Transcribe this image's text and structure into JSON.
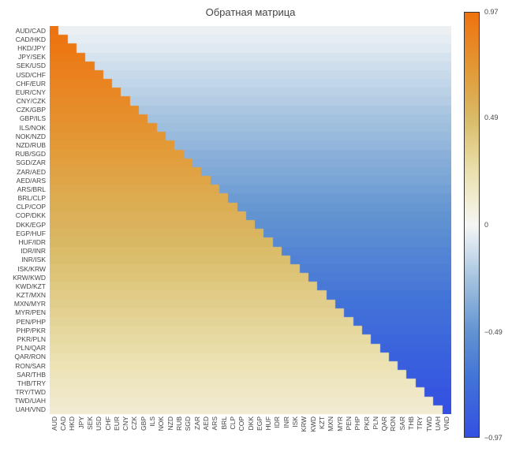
{
  "chart_data": {
    "type": "heatmap",
    "title": "Обратная матрица",
    "x_labels": [
      "AUD",
      "CAD",
      "HKD",
      "JPY",
      "SEK",
      "USD",
      "CHF",
      "EUR",
      "CNY",
      "CZK",
      "GBP",
      "ILS",
      "NOK",
      "NZD",
      "RUB",
      "SGD",
      "ZAR",
      "AED",
      "ARS",
      "BRL",
      "CLP",
      "COP",
      "DKK",
      "EGP",
      "HUF",
      "IDR",
      "INR",
      "ISK",
      "KRW",
      "KWD",
      "KZT",
      "MXN",
      "MYR",
      "PEN",
      "PHP",
      "PKR",
      "PLN",
      "QAR",
      "RON",
      "SAR",
      "THB",
      "TRY",
      "TWD",
      "UAH",
      "VND"
    ],
    "zmin": -0.97,
    "zmax": 0.97,
    "pattern_note": "Row i: columns 0..i take value below_diagonal, columns i+1..44 take value above_diagonal (triangular staircase from top-left to bottom-right).",
    "rows": [
      {
        "pair": "AUD/CAD",
        "below_diagonal": 0.97,
        "above_diagonal": -0.03
      },
      {
        "pair": "CAD/HKD",
        "below_diagonal": 0.95,
        "above_diagonal": -0.05
      },
      {
        "pair": "HKD/JPY",
        "below_diagonal": 0.93,
        "above_diagonal": -0.07
      },
      {
        "pair": "JPY/SEK",
        "below_diagonal": 0.91,
        "above_diagonal": -0.1
      },
      {
        "pair": "SEK/USD",
        "below_diagonal": 0.89,
        "above_diagonal": -0.12
      },
      {
        "pair": "USD/CHF",
        "below_diagonal": 0.87,
        "above_diagonal": -0.14
      },
      {
        "pair": "CHF/EUR",
        "below_diagonal": 0.85,
        "above_diagonal": -0.16
      },
      {
        "pair": "EUR/CNY",
        "below_diagonal": 0.83,
        "above_diagonal": -0.18
      },
      {
        "pair": "CNY/CZK",
        "below_diagonal": 0.81,
        "above_diagonal": -0.2
      },
      {
        "pair": "CZK/GBP",
        "below_diagonal": 0.79,
        "above_diagonal": -0.23
      },
      {
        "pair": "GBP/ILS",
        "below_diagonal": 0.77,
        "above_diagonal": -0.25
      },
      {
        "pair": "ILS/NOK",
        "below_diagonal": 0.75,
        "above_diagonal": -0.27
      },
      {
        "pair": "NOK/NZD",
        "below_diagonal": 0.73,
        "above_diagonal": -0.29
      },
      {
        "pair": "NZD/RUB",
        "below_diagonal": 0.71,
        "above_diagonal": -0.31
      },
      {
        "pair": "RUB/SGD",
        "below_diagonal": 0.69,
        "above_diagonal": -0.34
      },
      {
        "pair": "SGD/ZAR",
        "below_diagonal": 0.67,
        "above_diagonal": -0.36
      },
      {
        "pair": "ZAR/AED",
        "below_diagonal": 0.65,
        "above_diagonal": -0.38
      },
      {
        "pair": "AED/ARS",
        "below_diagonal": 0.63,
        "above_diagonal": -0.4
      },
      {
        "pair": "ARS/BRL",
        "below_diagonal": 0.61,
        "above_diagonal": -0.42
      },
      {
        "pair": "BRL/CLP",
        "below_diagonal": 0.59,
        "above_diagonal": -0.45
      },
      {
        "pair": "CLP/COP",
        "below_diagonal": 0.57,
        "above_diagonal": -0.47
      },
      {
        "pair": "COP/DKK",
        "below_diagonal": 0.55,
        "above_diagonal": -0.49
      },
      {
        "pair": "DKK/EGP",
        "below_diagonal": 0.54,
        "above_diagonal": -0.51
      },
      {
        "pair": "EGP/HUF",
        "below_diagonal": 0.52,
        "above_diagonal": -0.53
      },
      {
        "pair": "HUF/IDR",
        "below_diagonal": 0.5,
        "above_diagonal": -0.55
      },
      {
        "pair": "IDR/INR",
        "below_diagonal": 0.48,
        "above_diagonal": -0.58
      },
      {
        "pair": "INR/ISK",
        "below_diagonal": 0.46,
        "above_diagonal": -0.6
      },
      {
        "pair": "ISK/KRW",
        "below_diagonal": 0.44,
        "above_diagonal": -0.62
      },
      {
        "pair": "KRW/KWD",
        "below_diagonal": 0.42,
        "above_diagonal": -0.64
      },
      {
        "pair": "KWD/KZT",
        "below_diagonal": 0.4,
        "above_diagonal": -0.66
      },
      {
        "pair": "KZT/MXN",
        "below_diagonal": 0.38,
        "above_diagonal": -0.69
      },
      {
        "pair": "MXN/MYR",
        "below_diagonal": 0.36,
        "above_diagonal": -0.71
      },
      {
        "pair": "MYR/PEN",
        "below_diagonal": 0.34,
        "above_diagonal": -0.73
      },
      {
        "pair": "PEN/PHP",
        "below_diagonal": 0.32,
        "above_diagonal": -0.75
      },
      {
        "pair": "PHP/PKR",
        "below_diagonal": 0.3,
        "above_diagonal": -0.77
      },
      {
        "pair": "PKR/PLN",
        "below_diagonal": 0.28,
        "above_diagonal": -0.8
      },
      {
        "pair": "PLN/QAR",
        "below_diagonal": 0.26,
        "above_diagonal": -0.82
      },
      {
        "pair": "QAR/RON",
        "below_diagonal": 0.24,
        "above_diagonal": -0.84
      },
      {
        "pair": "RON/SAR",
        "below_diagonal": 0.22,
        "above_diagonal": -0.86
      },
      {
        "pair": "SAR/THB",
        "below_diagonal": 0.2,
        "above_diagonal": -0.88
      },
      {
        "pair": "THB/TRY",
        "below_diagonal": 0.18,
        "above_diagonal": -0.9
      },
      {
        "pair": "TRY/TWD",
        "below_diagonal": 0.16,
        "above_diagonal": -0.93
      },
      {
        "pair": "TWD/UAH",
        "below_diagonal": 0.14,
        "above_diagonal": -0.95
      },
      {
        "pair": "UAH/VND",
        "below_diagonal": 0.12,
        "above_diagonal": -0.97
      }
    ],
    "colorscale": [
      [
        -0.97,
        "#3350E2"
      ],
      [
        -0.7,
        "#4273D8"
      ],
      [
        -0.49,
        "#6193D1"
      ],
      [
        -0.25,
        "#A3C2DF"
      ],
      [
        -0.08,
        "#DCE7F0"
      ],
      [
        0.0,
        "#F5F6F4"
      ],
      [
        0.08,
        "#F3EFDC"
      ],
      [
        0.25,
        "#EADFAC"
      ],
      [
        0.49,
        "#D9BA66"
      ],
      [
        0.7,
        "#E29A38"
      ],
      [
        0.97,
        "#EE720E"
      ]
    ],
    "colorbar_ticks": [
      {
        "label": "0.97",
        "value": 0.97
      },
      {
        "label": "0.49",
        "value": 0.49
      },
      {
        "label": "0",
        "value": 0
      },
      {
        "label": "−0.49",
        "value": -0.49
      },
      {
        "label": "−0.97",
        "value": -0.97
      }
    ],
    "legend_position": "right",
    "grid": false
  }
}
